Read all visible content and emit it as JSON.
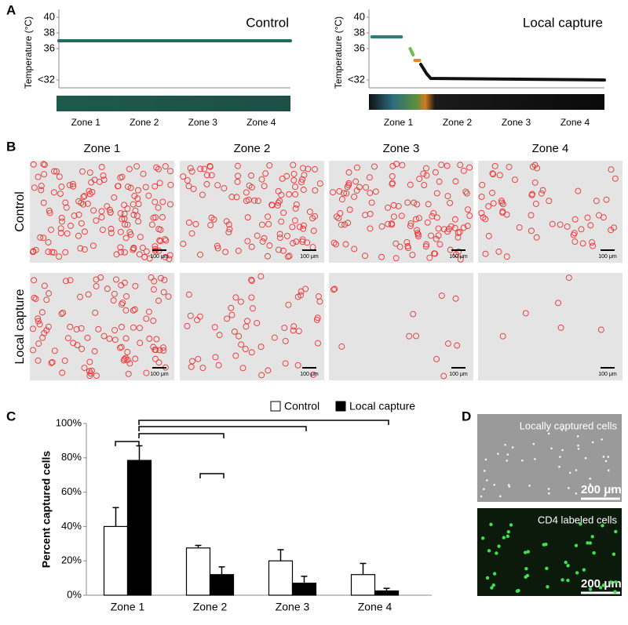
{
  "labels": [
    "A",
    "B",
    "C",
    "D"
  ],
  "chart_data": [
    {
      "type": "line",
      "title": "Control",
      "ylabel": "Temperature (°C)",
      "ylim": [
        31,
        41
      ],
      "yticks": [
        40,
        38,
        36,
        {
          "value": 32,
          "label": "<32"
        }
      ],
      "xlim": [
        0,
        4
      ],
      "zones": [
        "Zone 1",
        "Zone 2",
        "Zone 3",
        "Zone 4"
      ],
      "series": [
        {
          "color": "#1f6b63",
          "x": [
            0,
            4
          ],
          "values": [
            37,
            37
          ]
        }
      ]
    },
    {
      "type": "line",
      "title": "Local capture",
      "ylabel": "Temperature (°C)",
      "ylim": [
        31,
        41
      ],
      "yticks": [
        40,
        38,
        36,
        {
          "value": 32,
          "label": "<32"
        }
      ],
      "xlim": [
        0,
        4
      ],
      "zones": [
        "Zone 1",
        "Zone 2",
        "Zone 3",
        "Zone 4"
      ],
      "series": [
        {
          "color": "#2a7f7c",
          "x": [
            0.05,
            0.55
          ],
          "values": [
            37.5,
            37.5
          ]
        },
        {
          "color": "#6cbf4a",
          "x": [
            0.7,
            0.75
          ],
          "values": [
            36,
            35.2
          ]
        },
        {
          "color": "#e08a2a",
          "x": [
            0.82
          ],
          "values": [
            34.5
          ]
        },
        {
          "color": "#111111",
          "x": [
            0.88,
            0.93,
            0.98,
            1.05,
            4
          ],
          "values": [
            34,
            33.4,
            32.8,
            32.2,
            32
          ]
        }
      ]
    },
    {
      "type": "bar",
      "ylabel": "Percent captured cells",
      "categories": [
        "Zone 1",
        "Zone 2",
        "Zone 3",
        "Zone 4"
      ],
      "ylim": [
        0,
        100
      ],
      "yticks": [
        {
          "value": 0,
          "label": "0%"
        },
        {
          "value": 20,
          "label": "20%"
        },
        {
          "value": 40,
          "label": "40%"
        },
        {
          "value": 60,
          "label": "60%"
        },
        {
          "value": 80,
          "label": "80%"
        },
        {
          "value": 100,
          "label": "100%"
        }
      ],
      "series": [
        {
          "name": "Control",
          "color": "#ffffff",
          "values": [
            40,
            27.5,
            20,
            12
          ],
          "errors": [
            11,
            1.5,
            6.5,
            6.5
          ]
        },
        {
          "name": "Local capture",
          "color": "#000000",
          "values": [
            78.5,
            12,
            7,
            2.5
          ],
          "errors": [
            8.5,
            4.5,
            4,
            1.5
          ]
        }
      ]
    }
  ],
  "microscopy": {
    "columns": [
      "Zone 1",
      "Zone 2",
      "Zone 3",
      "Zone 4"
    ],
    "rows": [
      "Control",
      "Local capture"
    ],
    "scale_bar": "100 μm"
  },
  "images": [
    {
      "caption": "Locally captured cells",
      "scale_bar": "200 μm"
    },
    {
      "caption": "CD4 labeled cells",
      "scale_bar": "200 μm"
    }
  ]
}
